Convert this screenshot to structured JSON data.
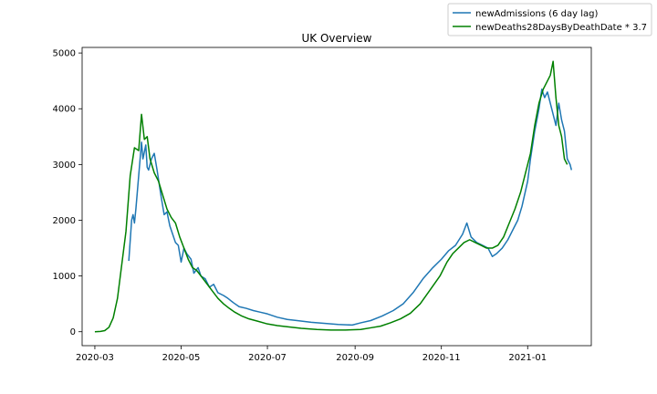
{
  "chart_data": {
    "type": "line",
    "title": "UK Overview",
    "xlabel": "",
    "ylabel": "",
    "x_axis": {
      "type": "date",
      "range": [
        "2020-02-21",
        "2021-02-15"
      ],
      "ticks": [
        "2020-03-01",
        "2020-05-01",
        "2020-07-01",
        "2020-09-01",
        "2020-11-01",
        "2021-01-01"
      ],
      "tick_labels": [
        "2020-03",
        "2020-05",
        "2020-07",
        "2020-09",
        "2020-11",
        "2021-01"
      ]
    },
    "y_axis": {
      "range": [
        -250,
        5100
      ],
      "ticks": [
        0,
        1000,
        2000,
        3000,
        4000,
        5000
      ],
      "tick_labels": [
        "0",
        "1000",
        "2000",
        "3000",
        "4000",
        "5000"
      ]
    },
    "grid": false,
    "legend_position": "top-right",
    "series": [
      {
        "name": "newAdmissions (6 day lag)",
        "color": "#1f77b4",
        "points": [
          [
            "2020-03-25",
            1270
          ],
          [
            "2020-03-27",
            2000
          ],
          [
            "2020-03-28",
            2100
          ],
          [
            "2020-03-29",
            1950
          ],
          [
            "2020-03-30",
            2200
          ],
          [
            "2020-03-31",
            2500
          ],
          [
            "2020-04-01",
            2800
          ],
          [
            "2020-04-02",
            3100
          ],
          [
            "2020-04-03",
            3400
          ],
          [
            "2020-04-04",
            3100
          ],
          [
            "2020-04-06",
            3350
          ],
          [
            "2020-04-07",
            2950
          ],
          [
            "2020-04-08",
            2900
          ],
          [
            "2020-04-10",
            3100
          ],
          [
            "2020-04-12",
            3200
          ],
          [
            "2020-04-14",
            2900
          ],
          [
            "2020-04-17",
            2400
          ],
          [
            "2020-04-19",
            2100
          ],
          [
            "2020-04-21",
            2150
          ],
          [
            "2020-04-23",
            1900
          ],
          [
            "2020-04-25",
            1750
          ],
          [
            "2020-04-27",
            1600
          ],
          [
            "2020-04-29",
            1550
          ],
          [
            "2020-05-01",
            1250
          ],
          [
            "2020-05-03",
            1500
          ],
          [
            "2020-05-05",
            1400
          ],
          [
            "2020-05-08",
            1300
          ],
          [
            "2020-05-10",
            1050
          ],
          [
            "2020-05-13",
            1150
          ],
          [
            "2020-05-15",
            1000
          ],
          [
            "2020-05-18",
            950
          ],
          [
            "2020-05-21",
            800
          ],
          [
            "2020-05-24",
            850
          ],
          [
            "2020-05-27",
            700
          ],
          [
            "2020-05-31",
            650
          ],
          [
            "2020-06-03",
            600
          ],
          [
            "2020-06-07",
            520
          ],
          [
            "2020-06-11",
            450
          ],
          [
            "2020-06-16",
            420
          ],
          [
            "2020-06-21",
            380
          ],
          [
            "2020-06-26",
            350
          ],
          [
            "2020-07-01",
            320
          ],
          [
            "2020-07-08",
            260
          ],
          [
            "2020-07-15",
            220
          ],
          [
            "2020-07-22",
            200
          ],
          [
            "2020-08-01",
            170
          ],
          [
            "2020-08-10",
            150
          ],
          [
            "2020-08-20",
            130
          ],
          [
            "2020-08-30",
            120
          ],
          [
            "2020-09-05",
            160
          ],
          [
            "2020-09-12",
            200
          ],
          [
            "2020-09-20",
            280
          ],
          [
            "2020-09-28",
            380
          ],
          [
            "2020-10-05",
            500
          ],
          [
            "2020-10-12",
            700
          ],
          [
            "2020-10-19",
            950
          ],
          [
            "2020-10-26",
            1150
          ],
          [
            "2020-11-01",
            1300
          ],
          [
            "2020-11-06",
            1450
          ],
          [
            "2020-11-11",
            1550
          ],
          [
            "2020-11-16",
            1750
          ],
          [
            "2020-11-19",
            1950
          ],
          [
            "2020-11-22",
            1700
          ],
          [
            "2020-11-26",
            1600
          ],
          [
            "2020-11-30",
            1550
          ],
          [
            "2020-12-04",
            1500
          ],
          [
            "2020-12-07",
            1350
          ],
          [
            "2020-12-10",
            1400
          ],
          [
            "2020-12-14",
            1500
          ],
          [
            "2020-12-18",
            1650
          ],
          [
            "2020-12-22",
            1850
          ],
          [
            "2020-12-25",
            2000
          ],
          [
            "2020-12-28",
            2250
          ],
          [
            "2021-01-01",
            2700
          ],
          [
            "2021-01-03",
            3100
          ],
          [
            "2021-01-06",
            3600
          ],
          [
            "2021-01-09",
            4000
          ],
          [
            "2021-01-11",
            4350
          ],
          [
            "2021-01-13",
            4200
          ],
          [
            "2021-01-15",
            4300
          ],
          [
            "2021-01-18",
            4000
          ],
          [
            "2021-01-21",
            3700
          ],
          [
            "2021-01-23",
            4100
          ],
          [
            "2021-01-25",
            3800
          ],
          [
            "2021-01-27",
            3600
          ],
          [
            "2021-01-29",
            3100
          ],
          [
            "2021-01-31",
            3000
          ],
          [
            "2021-02-01",
            2900
          ]
        ]
      },
      {
        "name": "newDeaths28DaysByDeathDate * 3.7",
        "color": "#008000",
        "points": [
          [
            "2020-03-01",
            0
          ],
          [
            "2020-03-05",
            5
          ],
          [
            "2020-03-08",
            20
          ],
          [
            "2020-03-11",
            80
          ],
          [
            "2020-03-14",
            250
          ],
          [
            "2020-03-17",
            600
          ],
          [
            "2020-03-20",
            1200
          ],
          [
            "2020-03-23",
            1800
          ],
          [
            "2020-03-26",
            2800
          ],
          [
            "2020-03-29",
            3300
          ],
          [
            "2020-04-01",
            3250
          ],
          [
            "2020-04-03",
            3900
          ],
          [
            "2020-04-05",
            3450
          ],
          [
            "2020-04-07",
            3500
          ],
          [
            "2020-04-09",
            3100
          ],
          [
            "2020-04-12",
            2850
          ],
          [
            "2020-04-15",
            2700
          ],
          [
            "2020-04-18",
            2450
          ],
          [
            "2020-04-21",
            2200
          ],
          [
            "2020-04-24",
            2050
          ],
          [
            "2020-04-27",
            1950
          ],
          [
            "2020-04-30",
            1700
          ],
          [
            "2020-05-03",
            1500
          ],
          [
            "2020-05-06",
            1300
          ],
          [
            "2020-05-09",
            1150
          ],
          [
            "2020-05-12",
            1100
          ],
          [
            "2020-05-15",
            1000
          ],
          [
            "2020-05-18",
            900
          ],
          [
            "2020-05-21",
            800
          ],
          [
            "2020-05-24",
            700
          ],
          [
            "2020-05-27",
            600
          ],
          [
            "2020-05-31",
            500
          ],
          [
            "2020-06-04",
            420
          ],
          [
            "2020-06-08",
            350
          ],
          [
            "2020-06-13",
            280
          ],
          [
            "2020-06-18",
            230
          ],
          [
            "2020-06-24",
            190
          ],
          [
            "2020-07-01",
            140
          ],
          [
            "2020-07-08",
            110
          ],
          [
            "2020-07-15",
            90
          ],
          [
            "2020-07-25",
            60
          ],
          [
            "2020-08-05",
            40
          ],
          [
            "2020-08-15",
            30
          ],
          [
            "2020-08-25",
            30
          ],
          [
            "2020-09-05",
            40
          ],
          [
            "2020-09-12",
            70
          ],
          [
            "2020-09-19",
            100
          ],
          [
            "2020-09-26",
            160
          ],
          [
            "2020-10-03",
            230
          ],
          [
            "2020-10-10",
            330
          ],
          [
            "2020-10-17",
            500
          ],
          [
            "2020-10-24",
            750
          ],
          [
            "2020-10-31",
            1000
          ],
          [
            "2020-11-05",
            1250
          ],
          [
            "2020-11-09",
            1400
          ],
          [
            "2020-11-13",
            1500
          ],
          [
            "2020-11-17",
            1600
          ],
          [
            "2020-11-21",
            1650
          ],
          [
            "2020-11-25",
            1600
          ],
          [
            "2020-11-29",
            1550
          ],
          [
            "2020-12-03",
            1500
          ],
          [
            "2020-12-07",
            1500
          ],
          [
            "2020-12-11",
            1550
          ],
          [
            "2020-12-15",
            1700
          ],
          [
            "2020-12-19",
            1950
          ],
          [
            "2020-12-23",
            2200
          ],
          [
            "2020-12-27",
            2500
          ],
          [
            "2020-12-31",
            2900
          ],
          [
            "2021-01-03",
            3200
          ],
          [
            "2021-01-06",
            3700
          ],
          [
            "2021-01-09",
            4100
          ],
          [
            "2021-01-12",
            4350
          ],
          [
            "2021-01-15",
            4500
          ],
          [
            "2021-01-17",
            4600
          ],
          [
            "2021-01-19",
            4850
          ],
          [
            "2021-01-21",
            4200
          ],
          [
            "2021-01-23",
            3700
          ],
          [
            "2021-01-25",
            3500
          ],
          [
            "2021-01-27",
            3100
          ],
          [
            "2021-01-29",
            3000
          ]
        ]
      }
    ]
  }
}
